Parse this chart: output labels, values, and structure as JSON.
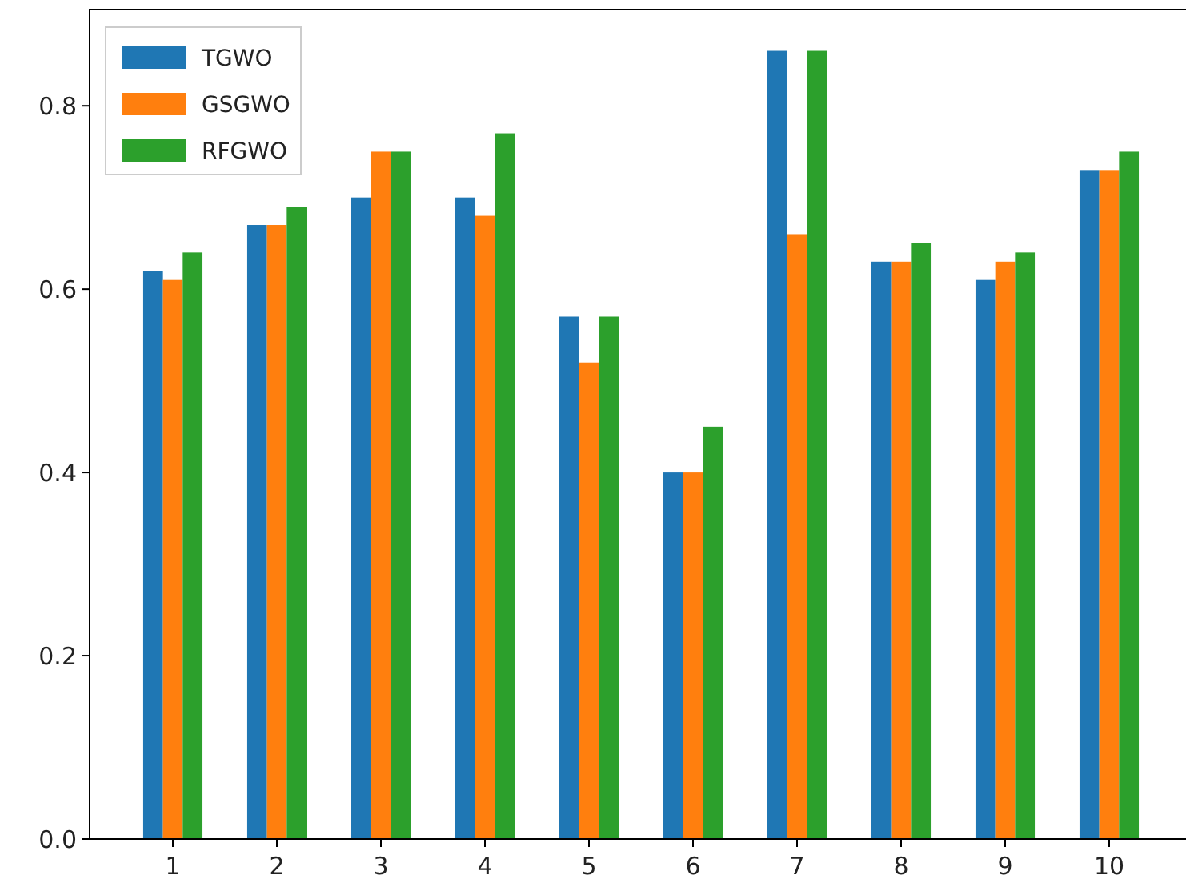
{
  "chart_data": {
    "type": "bar",
    "categories": [
      "1",
      "2",
      "3",
      "4",
      "5",
      "6",
      "7",
      "8",
      "9",
      "10"
    ],
    "series": [
      {
        "name": "TGWO",
        "color": "#1f77b4",
        "values": [
          0.62,
          0.67,
          0.7,
          0.7,
          0.57,
          0.4,
          0.86,
          0.63,
          0.61,
          0.73
        ]
      },
      {
        "name": "GSGWO",
        "color": "#ff7f0e",
        "values": [
          0.61,
          0.67,
          0.75,
          0.68,
          0.52,
          0.4,
          0.66,
          0.63,
          0.63,
          0.73
        ]
      },
      {
        "name": "RFGWO",
        "color": "#2ca02c",
        "values": [
          0.64,
          0.69,
          0.75,
          0.77,
          0.57,
          0.45,
          0.86,
          0.65,
          0.64,
          0.75
        ]
      }
    ],
    "ylim": [
      0,
      0.905
    ],
    "yticks": [
      {
        "value": 0,
        "label": "0.0"
      },
      {
        "value": 0.2,
        "label": "0.2"
      },
      {
        "value": 0.4,
        "label": "0.4"
      },
      {
        "value": 0.6,
        "label": "0.6"
      },
      {
        "value": 0.8,
        "label": "0.8"
      }
    ],
    "legend": "top left",
    "grid": false
  }
}
